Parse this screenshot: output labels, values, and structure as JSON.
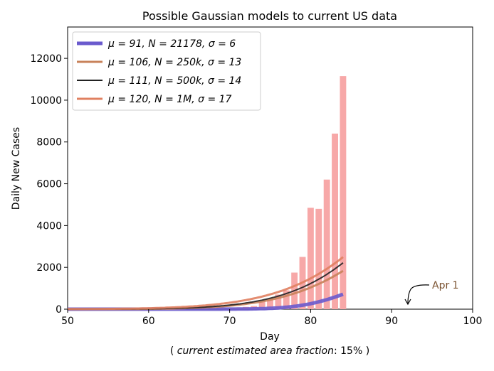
{
  "chart_data": {
    "type": "bar",
    "title": "Possible Gaussian models to current US data",
    "xlabel": "Day",
    "xlabel_sub_prefix": "( ",
    "xlabel_sub_italic": "current estimated area fraction",
    "xlabel_sub_suffix": ": 15% )",
    "ylabel": "Daily New Cases",
    "xlim": [
      50,
      100
    ],
    "ylim": [
      0,
      13500
    ],
    "xticks": [
      50,
      60,
      70,
      80,
      90,
      100
    ],
    "yticks": [
      0,
      2000,
      4000,
      6000,
      8000,
      10000,
      12000
    ],
    "bars": {
      "color": "#f7a8a8",
      "x": [
        50,
        51,
        52,
        53,
        54,
        55,
        56,
        57,
        58,
        59,
        60,
        61,
        62,
        63,
        64,
        65,
        66,
        67,
        68,
        69,
        70,
        71,
        72,
        73,
        74,
        75,
        76,
        77,
        78,
        79,
        80,
        81,
        82,
        83,
        84
      ],
      "values": [
        0,
        0,
        0,
        0,
        0,
        0,
        0,
        0,
        0,
        0,
        0,
        0,
        0,
        0,
        10,
        15,
        20,
        25,
        35,
        45,
        60,
        80,
        110,
        150,
        350,
        500,
        700,
        900,
        1750,
        2500,
        4850,
        4800,
        6200,
        8400,
        11150
      ]
    },
    "series": [
      {
        "name": "μ = 91,   N = 21178,   σ = 6",
        "color": "#6a5acd",
        "width": 5,
        "mu": 91,
        "N": 21178,
        "sigma": 6
      },
      {
        "name": "μ = 106,   N = 250k,   σ = 13",
        "color": "#c8825a",
        "width": 3,
        "mu": 106,
        "N": 250000,
        "sigma": 13
      },
      {
        "name": "μ = 111,   N = 500k,   σ = 14",
        "color": "#222222",
        "width": 2,
        "mu": 111,
        "N": 500000,
        "sigma": 14
      },
      {
        "name": "μ = 120,   N = 1M,   σ = 17",
        "color": "#e08060",
        "width": 3,
        "mu": 120,
        "N": 1000000,
        "sigma": 17
      }
    ],
    "legend_position": "upper-left",
    "annotation": {
      "text": "Apr 1",
      "x": 92,
      "y": 0
    }
  }
}
